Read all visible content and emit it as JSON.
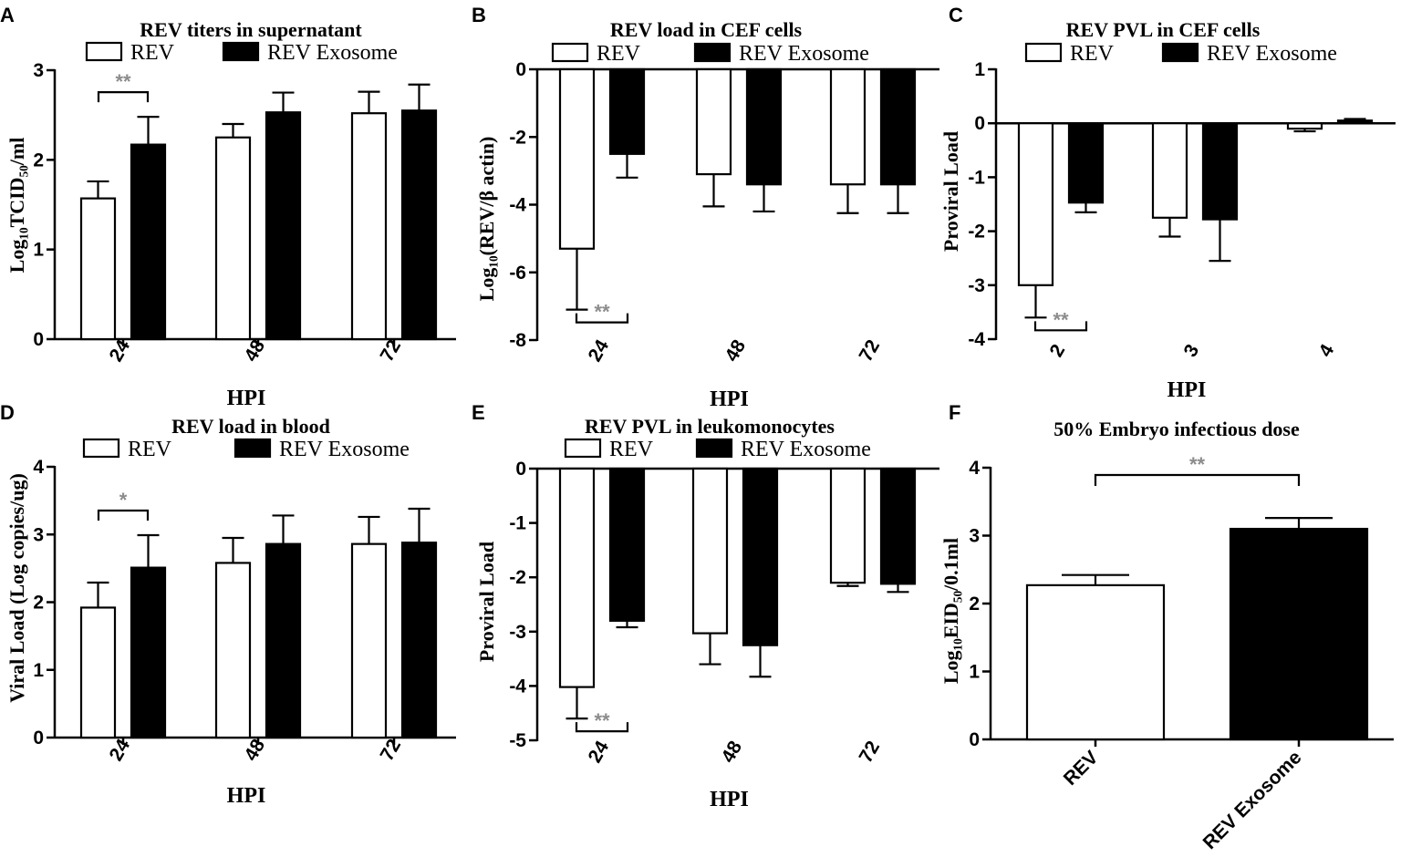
{
  "colors": {
    "rev": "#ffffff",
    "exosome": "#000000",
    "axis": "#000000",
    "significance": "#8c8c8c"
  },
  "chart_data": [
    {
      "letter": "A",
      "type": "bar",
      "title": "REV titers in supernatant",
      "xlabel": "HPI",
      "ylabel": "Log₁₀TCID₅₀/ml",
      "categories": [
        "24",
        "48",
        "72"
      ],
      "ylim": [
        0,
        3
      ],
      "yticks": [
        "0",
        "1",
        "2",
        "3"
      ],
      "series": [
        {
          "name": "REV",
          "values": [
            1.57,
            2.25,
            2.52
          ],
          "errors": [
            0.19,
            0.15,
            0.24
          ]
        },
        {
          "name": "REV Exosome",
          "values": [
            2.17,
            2.53,
            2.55
          ],
          "errors": [
            0.31,
            0.22,
            0.29
          ]
        }
      ],
      "significance": [
        {
          "category": 0,
          "label": "**"
        }
      ]
    },
    {
      "letter": "B",
      "type": "bar",
      "title": "REV load in CEF cells",
      "xlabel": "HPI",
      "ylabel": "Log₁₀(REV/β actin)",
      "categories": [
        "24",
        "48",
        "72"
      ],
      "ylim": [
        -8,
        0
      ],
      "yticks": [
        "-8",
        "-6",
        "-4",
        "-2",
        "0"
      ],
      "series": [
        {
          "name": "REV",
          "values": [
            -5.3,
            -3.1,
            -3.4
          ],
          "errors": [
            1.8,
            0.95,
            0.85
          ]
        },
        {
          "name": "REV Exosome",
          "values": [
            -2.5,
            -3.4,
            -3.4
          ],
          "errors": [
            0.7,
            0.8,
            0.85
          ]
        }
      ],
      "significance": [
        {
          "category": 0,
          "label": "**"
        }
      ]
    },
    {
      "letter": "C",
      "type": "bar",
      "title": "REV PVL in CEF cells",
      "xlabel": "HPI",
      "ylabel": "Proviral Load",
      "categories": [
        "2",
        "3",
        "4"
      ],
      "ylim": [
        -4,
        1
      ],
      "yticks": [
        "-4",
        "-3",
        "-2",
        "-1",
        "0",
        "1"
      ],
      "series": [
        {
          "name": "REV",
          "values": [
            -3.0,
            -1.75,
            -0.1
          ],
          "errors": [
            0.6,
            0.35,
            0.05
          ]
        },
        {
          "name": "REV Exosome",
          "values": [
            -1.47,
            -1.78,
            0.05
          ],
          "errors": [
            0.18,
            0.77,
            0.03
          ]
        }
      ],
      "significance": [
        {
          "category": 0,
          "label": "**"
        }
      ]
    },
    {
      "letter": "D",
      "type": "bar",
      "title": "REV load in blood",
      "xlabel": "HPI",
      "ylabel": "Viral Load (Log copies/ug)",
      "categories": [
        "24",
        "48",
        "72"
      ],
      "ylim": [
        0,
        4
      ],
      "yticks": [
        "0",
        "1",
        "2",
        "3",
        "4"
      ],
      "series": [
        {
          "name": "REV",
          "values": [
            1.92,
            2.58,
            2.86
          ],
          "errors": [
            0.37,
            0.37,
            0.4
          ]
        },
        {
          "name": "REV Exosome",
          "values": [
            2.51,
            2.86,
            2.88
          ],
          "errors": [
            0.48,
            0.42,
            0.5
          ]
        }
      ],
      "significance": [
        {
          "category": 0,
          "label": "*"
        }
      ]
    },
    {
      "letter": "E",
      "type": "bar",
      "title": "REV PVL in leukomonocytes",
      "xlabel": "HPI",
      "ylabel": "Proviral Load",
      "categories": [
        "24",
        "48",
        "72"
      ],
      "ylim": [
        -5,
        0
      ],
      "yticks": [
        "-5",
        "-4",
        "-3",
        "-2",
        "-1",
        "0"
      ],
      "series": [
        {
          "name": "REV",
          "values": [
            -4.02,
            -3.03,
            -2.1
          ],
          "errors": [
            0.58,
            0.57,
            0.06
          ]
        },
        {
          "name": "REV Exosome",
          "values": [
            -2.8,
            -3.25,
            -2.12
          ],
          "errors": [
            0.12,
            0.58,
            0.15
          ]
        }
      ],
      "significance": [
        {
          "category": 0,
          "label": "**"
        }
      ]
    },
    {
      "letter": "F",
      "type": "bar",
      "title": "50% Embryo infectious dose",
      "xlabel": "",
      "ylabel": "Log₁₀EID₅₀/0.1ml",
      "categories": [
        "REV",
        "REV Exosome"
      ],
      "ylim": [
        0,
        4
      ],
      "yticks": [
        "0",
        "1",
        "2",
        "3",
        "4"
      ],
      "values": [
        2.27,
        3.1
      ],
      "errors": [
        0.15,
        0.16
      ],
      "significance": [
        {
          "label": "**"
        }
      ]
    }
  ]
}
